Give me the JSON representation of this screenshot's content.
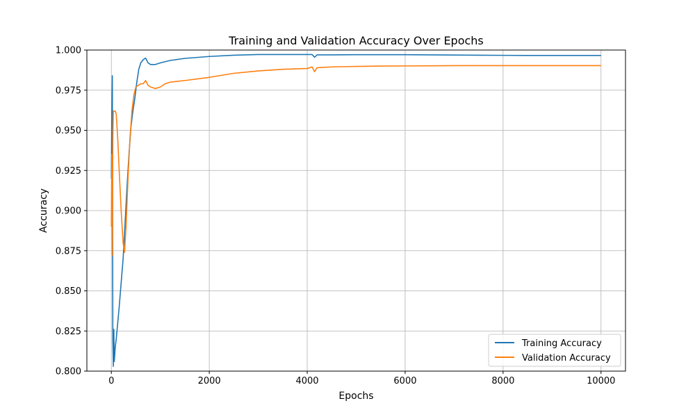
{
  "chart_data": {
    "type": "line",
    "title": "Training and Validation Accuracy Over Epochs",
    "xlabel": "Epochs",
    "ylabel": "Accuracy",
    "xlim": [
      -500,
      10500
    ],
    "ylim": [
      0.8,
      1.0
    ],
    "xticks": [
      0,
      2000,
      4000,
      6000,
      8000,
      10000
    ],
    "xtick_labels": [
      "0",
      "2000",
      "4000",
      "6000",
      "8000",
      "10000"
    ],
    "yticks": [
      0.8,
      0.825,
      0.85,
      0.875,
      0.9,
      0.925,
      0.95,
      0.975,
      1.0
    ],
    "ytick_labels": [
      "0.800",
      "0.825",
      "0.850",
      "0.875",
      "0.900",
      "0.925",
      "0.950",
      "0.975",
      "1.000"
    ],
    "grid": true,
    "legend_position": "lower-right",
    "series": [
      {
        "name": "Training Accuracy",
        "color": "#1f77b4",
        "x": [
          0,
          10,
          20,
          30,
          40,
          50,
          60,
          80,
          100,
          130,
          160,
          200,
          240,
          280,
          320,
          360,
          400,
          440,
          480,
          520,
          560,
          600,
          650,
          700,
          750,
          800,
          900,
          1000,
          1200,
          1500,
          2000,
          2500,
          3000,
          3500,
          4000,
          4100,
          4150,
          4200,
          4500,
          5000,
          5500,
          6000,
          6500,
          7000,
          7500,
          8000,
          8500,
          9000,
          9500,
          10000
        ],
        "y": [
          0.92,
          0.96,
          0.984,
          0.82,
          0.803,
          0.826,
          0.806,
          0.815,
          0.82,
          0.83,
          0.84,
          0.855,
          0.87,
          0.892,
          0.915,
          0.935,
          0.952,
          0.962,
          0.97,
          0.98,
          0.988,
          0.992,
          0.994,
          0.995,
          0.992,
          0.991,
          0.991,
          0.992,
          0.9935,
          0.9948,
          0.996,
          0.9968,
          0.9972,
          0.9972,
          0.9972,
          0.9972,
          0.9955,
          0.997,
          0.997,
          0.9971,
          0.9971,
          0.9971,
          0.997,
          0.9969,
          0.9968,
          0.9967,
          0.9966,
          0.9966,
          0.9966,
          0.9966
        ]
      },
      {
        "name": "Validation Accuracy",
        "color": "#ff7f0e",
        "x": [
          0,
          10,
          20,
          30,
          40,
          60,
          80,
          100,
          130,
          160,
          200,
          240,
          270,
          300,
          340,
          380,
          420,
          460,
          500,
          550,
          600,
          650,
          700,
          750,
          800,
          900,
          1000,
          1100,
          1200,
          1500,
          2000,
          2500,
          3000,
          3500,
          4000,
          4100,
          4150,
          4200,
          4500,
          5000,
          5500,
          6000,
          6500,
          7000,
          7500,
          8000,
          8500,
          9000,
          9500,
          10000
        ],
        "y": [
          0.89,
          0.935,
          0.872,
          0.945,
          0.962,
          0.962,
          0.962,
          0.96,
          0.945,
          0.925,
          0.9,
          0.88,
          0.874,
          0.89,
          0.92,
          0.945,
          0.962,
          0.972,
          0.977,
          0.978,
          0.979,
          0.979,
          0.981,
          0.978,
          0.977,
          0.976,
          0.977,
          0.979,
          0.98,
          0.981,
          0.983,
          0.9855,
          0.987,
          0.988,
          0.9885,
          0.9895,
          0.9865,
          0.989,
          0.9895,
          0.9898,
          0.99,
          0.9901,
          0.9902,
          0.9903,
          0.9903,
          0.9903,
          0.9903,
          0.9903,
          0.9903,
          0.9903
        ]
      }
    ]
  }
}
